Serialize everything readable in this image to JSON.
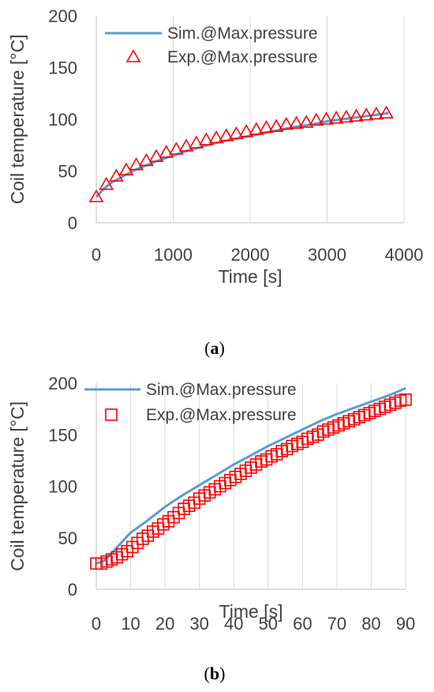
{
  "chart_data": [
    {
      "type": "scatter",
      "caption_letter": "a",
      "xlabel": "Time [s]",
      "ylabel": "Coil temperature [°C]",
      "xlim": [
        0,
        4000
      ],
      "ylim": [
        0,
        200
      ],
      "xticks": [
        0,
        1000,
        2000,
        3000,
        4000
      ],
      "yticks": [
        0,
        50,
        100,
        150,
        200
      ],
      "grid": "vertical",
      "legend_position": "top-left",
      "series": [
        {
          "name": "Sim.@Max.pressure",
          "kind": "line",
          "color": "#5B9BD5",
          "x": [
            0,
            100,
            200,
            300,
            400,
            500,
            600,
            800,
            1000,
            1200,
            1400,
            1600,
            1800,
            2000,
            2200,
            2400,
            2600,
            2800,
            3000,
            3200,
            3400,
            3600,
            3800
          ],
          "y": [
            25,
            33,
            39,
            43,
            47,
            51,
            54,
            60,
            65,
            70,
            74,
            78,
            81,
            84,
            87,
            90,
            93,
            95,
            98,
            100,
            102,
            104,
            106
          ]
        },
        {
          "name": "Exp.@Max.pressure",
          "kind": "triangle",
          "color": "#FF0000",
          "x": [
            0,
            130,
            260,
            390,
            520,
            650,
            780,
            910,
            1040,
            1170,
            1300,
            1430,
            1560,
            1690,
            1820,
            1950,
            2080,
            2210,
            2340,
            2470,
            2600,
            2730,
            2860,
            2990,
            3120,
            3250,
            3380,
            3510,
            3640,
            3770
          ],
          "y": [
            25,
            37,
            45,
            51,
            56,
            60,
            64,
            68,
            71,
            74,
            77,
            80,
            82,
            84,
            86,
            88,
            90,
            92,
            93,
            95,
            96,
            97,
            99,
            100,
            101,
            102,
            103,
            104,
            105,
            106
          ]
        }
      ]
    },
    {
      "type": "scatter",
      "caption_letter": "b",
      "xlabel": "Time [s]",
      "ylabel": "Coil temperature [°C]",
      "xlim": [
        0,
        90
      ],
      "ylim": [
        0,
        200
      ],
      "xticks": [
        0,
        10,
        20,
        30,
        40,
        50,
        60,
        70,
        80,
        90
      ],
      "yticks": [
        0,
        50,
        100,
        150,
        200
      ],
      "grid": "vertical",
      "legend_position": "top-left",
      "series": [
        {
          "name": "Sim.@Max.pressure",
          "kind": "line",
          "color": "#5B9BD5",
          "x": [
            0,
            2,
            5,
            10,
            15,
            20,
            25,
            30,
            35,
            40,
            45,
            50,
            55,
            60,
            65,
            70,
            75,
            80,
            85,
            90
          ],
          "y": [
            25,
            27,
            37,
            55,
            67,
            80,
            91,
            101,
            111,
            121,
            130,
            139,
            147,
            155,
            163,
            170,
            176,
            182,
            188,
            195
          ]
        },
        {
          "name": "Exp.@Max.pressure",
          "kind": "square",
          "color": "#FF0000",
          "x": [
            0,
            1.5,
            3,
            4.5,
            6,
            7.5,
            9,
            10.5,
            12,
            13.5,
            15,
            16.5,
            18,
            19.5,
            21,
            22.5,
            24,
            25.5,
            27,
            28.5,
            30,
            31.5,
            33,
            34.5,
            36,
            37.5,
            39,
            40.5,
            42,
            43.5,
            45,
            46.5,
            48,
            49.5,
            51,
            52.5,
            54,
            55.5,
            57,
            58.5,
            60,
            61.5,
            63,
            64.5,
            66,
            67.5,
            69,
            70.5,
            72,
            73.5,
            75,
            76.5,
            78,
            79.5,
            81,
            82.5,
            84,
            85.5,
            87,
            88.5,
            90
          ],
          "y": [
            25,
            25,
            27,
            29,
            31,
            34,
            37,
            41,
            45,
            49,
            52,
            56,
            59,
            63,
            66,
            70,
            74,
            78,
            81,
            84,
            88,
            91,
            94,
            97,
            100,
            103,
            106,
            109,
            112,
            115,
            118,
            121,
            124,
            126,
            129,
            131,
            134,
            136,
            139,
            141,
            143,
            146,
            148,
            150,
            153,
            155,
            157,
            159,
            161,
            163,
            165,
            167,
            169,
            171,
            173,
            175,
            177,
            179,
            181,
            183,
            184
          ]
        }
      ]
    }
  ]
}
